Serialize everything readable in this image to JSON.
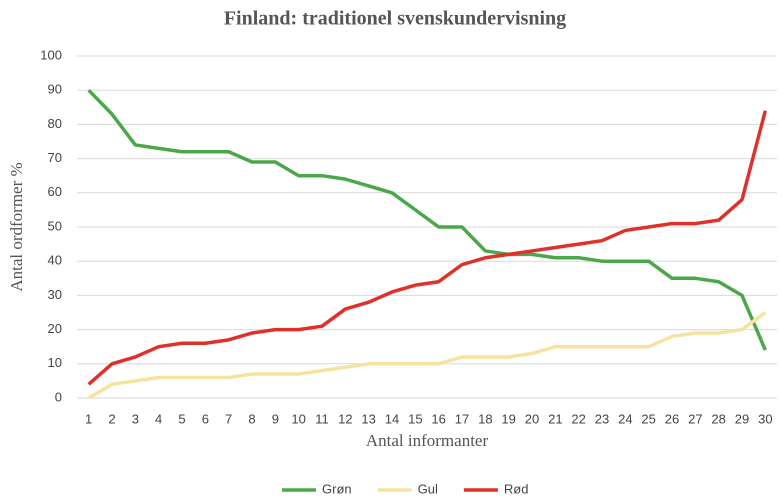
{
  "chart_data": {
    "type": "line",
    "title": "Finland: traditionel svenskundervisning",
    "xlabel": "Antal informanter",
    "ylabel": "Antal ordformer %",
    "categories": [
      1,
      2,
      3,
      4,
      5,
      6,
      7,
      8,
      9,
      10,
      11,
      12,
      13,
      14,
      15,
      16,
      17,
      18,
      19,
      20,
      21,
      22,
      23,
      24,
      25,
      26,
      27,
      28,
      29,
      30
    ],
    "series": [
      {
        "name": "Grøn",
        "color": "#4aa84a",
        "values": [
          90,
          83,
          74,
          73,
          72,
          72,
          72,
          69,
          69,
          65,
          65,
          64,
          62,
          60,
          55,
          50,
          50,
          43,
          42,
          42,
          41,
          41,
          40,
          40,
          40,
          35,
          35,
          34,
          30,
          14
        ]
      },
      {
        "name": "Gul",
        "color": "#f7e3a1",
        "values": [
          0,
          4,
          5,
          6,
          6,
          6,
          6,
          7,
          7,
          7,
          8,
          9,
          10,
          10,
          10,
          10,
          12,
          12,
          12,
          13,
          15,
          15,
          15,
          15,
          15,
          18,
          19,
          19,
          20,
          25
        ]
      },
      {
        "name": "Rød",
        "color": "#e0302a",
        "values": [
          4,
          10,
          12,
          15,
          16,
          16,
          17,
          19,
          20,
          20,
          21,
          26,
          28,
          31,
          33,
          34,
          39,
          41,
          42,
          43,
          44,
          45,
          46,
          49,
          50,
          51,
          51,
          52,
          58,
          84
        ]
      }
    ],
    "ylim": [
      0,
      100
    ],
    "yticks": [
      0,
      10,
      20,
      30,
      40,
      50,
      60,
      70,
      80,
      90,
      100
    ],
    "grid": true
  }
}
